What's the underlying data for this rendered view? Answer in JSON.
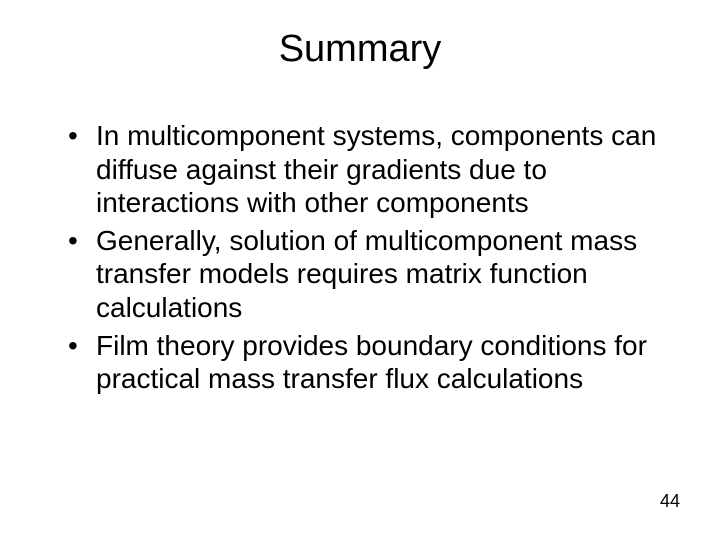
{
  "slide": {
    "title": "Summary",
    "bullets": [
      "In multicomponent systems, components can diffuse against their gradients due to interactions with other components",
      "Generally, solution of multicomponent mass transfer models requires matrix function calculations",
      "Film theory provides boundary conditions for practical mass transfer flux calculations"
    ],
    "page_number": "44"
  },
  "style": {
    "background_color": "#ffffff",
    "text_color": "#000000",
    "title_fontsize": 38,
    "body_fontsize": 28,
    "page_number_fontsize": 18,
    "font_family": "Arial, Helvetica, sans-serif"
  }
}
